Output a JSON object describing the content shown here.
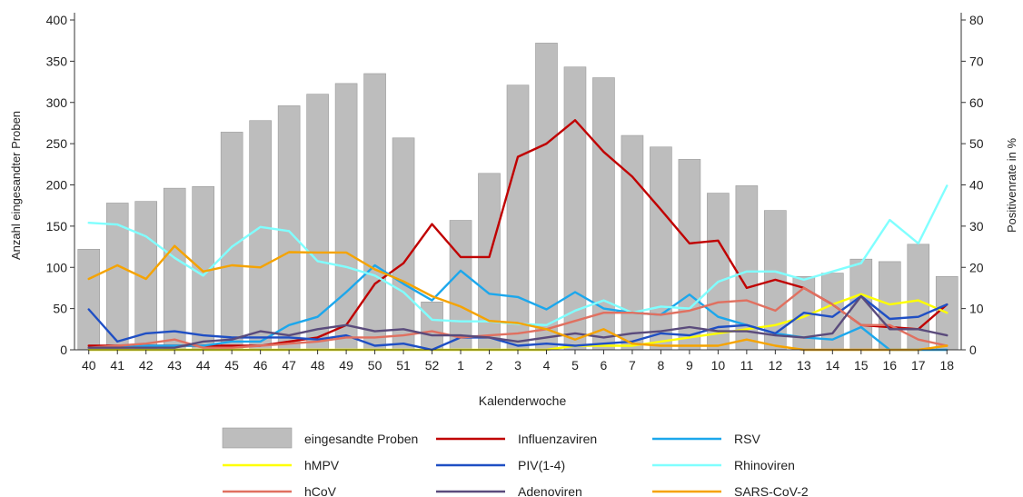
{
  "chart_data": {
    "type": "bar",
    "xlabel": "Kalenderwoche",
    "ylabel": "Anzahl eingesandter Proben",
    "y2label": "Positivenrate in %",
    "ylim": [
      0,
      400
    ],
    "y2lim": [
      0,
      80
    ],
    "yticks": [
      "0",
      "50",
      "100",
      "150",
      "200",
      "250",
      "300",
      "350",
      "400"
    ],
    "y2ticks": [
      "0",
      "10",
      "20",
      "30",
      "40",
      "50",
      "60",
      "70",
      "80"
    ],
    "categories": [
      "40",
      "41",
      "42",
      "43",
      "44",
      "45",
      "46",
      "47",
      "48",
      "49",
      "50",
      "51",
      "52",
      "1",
      "2",
      "3",
      "4",
      "5",
      "6",
      "7",
      "8",
      "9",
      "10",
      "11",
      "12",
      "13",
      "14",
      "15",
      "16",
      "17",
      "18"
    ],
    "bars": {
      "name": "eingesandte Proben",
      "color": "#BDBDBD",
      "values": [
        122,
        178,
        180,
        196,
        198,
        264,
        278,
        296,
        310,
        323,
        335,
        257,
        58,
        157,
        214,
        321,
        372,
        343,
        330,
        260,
        246,
        231,
        190,
        199,
        169,
        89,
        93,
        110,
        107,
        128,
        89
      ]
    },
    "series": [
      {
        "name": "Influenzaviren",
        "color": "#C00000",
        "axis": "right",
        "values": [
          1,
          1,
          1,
          1,
          1,
          1,
          1,
          2,
          3,
          6,
          16,
          21,
          30.5,
          22.5,
          22.5,
          46.8,
          50,
          55.7,
          48,
          42,
          34,
          25.8,
          26.5,
          15,
          17,
          15,
          11,
          6,
          5.5,
          5,
          11
        ]
      },
      {
        "name": "RSV",
        "color": "#1CA7EC",
        "axis": "right",
        "values": [
          0.5,
          0.5,
          1,
          1,
          1,
          2,
          2,
          6,
          8,
          14,
          20.5,
          16,
          12,
          19.2,
          13.6,
          12.8,
          9.8,
          14,
          10,
          9,
          8.5,
          13.4,
          8,
          6,
          4,
          3,
          2.5,
          5.5,
          0,
          0,
          0
        ]
      },
      {
        "name": "hMPV",
        "color": "#FFFF00",
        "axis": "right",
        "values": [
          0,
          0,
          0,
          0,
          0,
          0,
          0,
          0,
          0,
          0,
          0,
          0,
          0,
          0,
          0,
          0,
          0,
          1,
          1,
          1,
          2,
          3,
          4,
          5,
          6,
          8,
          11,
          13.5,
          11,
          12,
          9
        ]
      },
      {
        "name": "PIV(1-4)",
        "color": "#1F4FC4",
        "axis": "right",
        "values": [
          9.8,
          2,
          4,
          4.5,
          3.5,
          3,
          3,
          3,
          2.5,
          3.5,
          1,
          1.5,
          0,
          3,
          3,
          1,
          1.5,
          1,
          1.5,
          2,
          4,
          3.5,
          5.5,
          6,
          4,
          9,
          8,
          13,
          7.5,
          8,
          11
        ]
      },
      {
        "name": "Rhinoviren",
        "color": "#80FFFF",
        "axis": "right",
        "values": [
          30.8,
          30.4,
          27.5,
          22.3,
          18,
          25,
          29.8,
          28.8,
          21.5,
          20.1,
          18,
          14,
          7.3,
          6.9,
          6.9,
          6.3,
          6,
          9.5,
          12,
          9,
          10.5,
          10,
          16.5,
          19,
          19,
          17,
          19,
          21,
          31.5,
          25.8,
          39.8
        ]
      },
      {
        "name": "hCoV",
        "color": "#E07060",
        "axis": "right",
        "values": [
          0.5,
          1,
          1.5,
          2.5,
          0.5,
          0.5,
          1,
          1.5,
          2,
          3,
          3,
          3.5,
          4.5,
          3,
          3.5,
          4,
          5,
          7,
          9,
          9,
          8.5,
          9.5,
          11.5,
          12,
          9.5,
          15,
          11,
          6,
          6,
          2.5,
          1
        ]
      },
      {
        "name": "Adenoviren",
        "color": "#5A4B7C",
        "axis": "right",
        "values": [
          0.5,
          0.5,
          0.5,
          0.5,
          2,
          2.5,
          4.5,
          3.5,
          5,
          6,
          4.5,
          5,
          3.5,
          3.5,
          3,
          2,
          3,
          4,
          3,
          4,
          4.5,
          5.5,
          4.5,
          4.5,
          3.5,
          3,
          4,
          13,
          5,
          5,
          3.5
        ]
      },
      {
        "name": "SARS-CoV-2",
        "color": "#F5A300",
        "axis": "right",
        "values": [
          17.2,
          20.5,
          17.2,
          25.2,
          19,
          20.5,
          20,
          23.7,
          23.6,
          23.6,
          19.5,
          16.6,
          13,
          10.5,
          7,
          6.5,
          5,
          2.5,
          5,
          1.5,
          1,
          1,
          1,
          2.5,
          1,
          0,
          0,
          0,
          0,
          0,
          1
        ]
      }
    ],
    "legend": [
      {
        "label": "eingesandte Proben",
        "kind": "bar",
        "color": "#BDBDBD"
      },
      {
        "label": "Influenzaviren",
        "kind": "line",
        "color": "#C00000"
      },
      {
        "label": "RSV",
        "kind": "line",
        "color": "#1CA7EC"
      },
      {
        "label": "hMPV",
        "kind": "line",
        "color": "#FFFF00"
      },
      {
        "label": "PIV(1-4)",
        "kind": "line",
        "color": "#1F4FC4"
      },
      {
        "label": "Rhinoviren",
        "kind": "line",
        "color": "#80FFFF"
      },
      {
        "label": "hCoV",
        "kind": "line",
        "color": "#E07060"
      },
      {
        "label": "Adenoviren",
        "kind": "line",
        "color": "#5A4B7C"
      },
      {
        "label": "SARS-CoV-2",
        "kind": "line",
        "color": "#F5A300"
      }
    ],
    "legend_position": "bottom",
    "grid": false
  }
}
